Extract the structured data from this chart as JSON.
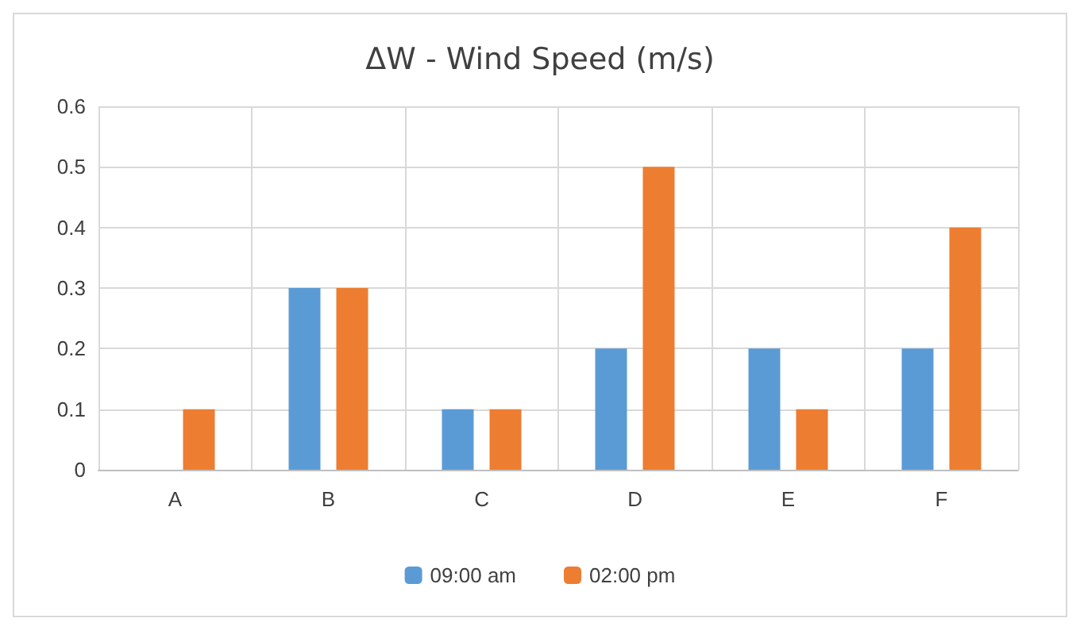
{
  "chart_data": {
    "type": "bar",
    "title": "ΔW - Wind Speed (m/s)",
    "categories": [
      "A",
      "B",
      "C",
      "D",
      "E",
      "F"
    ],
    "series": [
      {
        "name": "09:00 am",
        "color": "#5b9bd5",
        "values": [
          0,
          0.3,
          0.1,
          0.2,
          0.2,
          0.2
        ]
      },
      {
        "name": "02:00 pm",
        "color": "#ed7d31",
        "values": [
          0.1,
          0.3,
          0.1,
          0.5,
          0.1,
          0.4
        ]
      }
    ],
    "ylim": [
      0,
      0.6
    ],
    "yticks": [
      0,
      0.1,
      0.2,
      0.3,
      0.4,
      0.5,
      0.6
    ],
    "grid": true,
    "legend": "bottom"
  }
}
